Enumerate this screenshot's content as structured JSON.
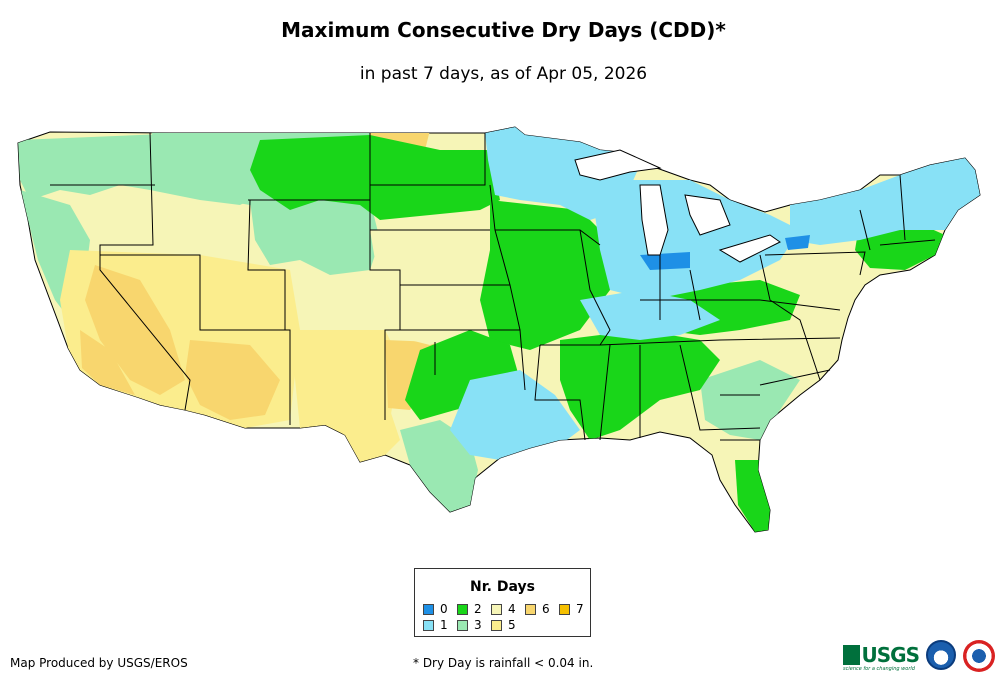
{
  "title": "Maximum Consecutive Dry Days (CDD)*",
  "subtitle": "in past 7 days, as of Apr 05, 2026",
  "legend": {
    "title": "Nr. Days",
    "items": [
      {
        "label": "0",
        "color": "#1e90e6"
      },
      {
        "label": "1",
        "color": "#88e1f6"
      },
      {
        "label": "2",
        "color": "#19d619"
      },
      {
        "label": "3",
        "color": "#9ae8b2"
      },
      {
        "label": "4",
        "color": "#f6f5b7"
      },
      {
        "label": "5",
        "color": "#fbed8d"
      },
      {
        "label": "6",
        "color": "#f8d66e"
      },
      {
        "label": "7",
        "color": "#f5c000"
      }
    ]
  },
  "footer": {
    "credit": "Map Produced by USGS/EROS",
    "note": "* Dry Day is rainfall < 0.04 in."
  },
  "logos": {
    "usgs": "USGS",
    "usgs_tagline": "science for a changing world"
  },
  "colors": {
    "border": "#000000",
    "land_base": "#f6f5b7"
  }
}
